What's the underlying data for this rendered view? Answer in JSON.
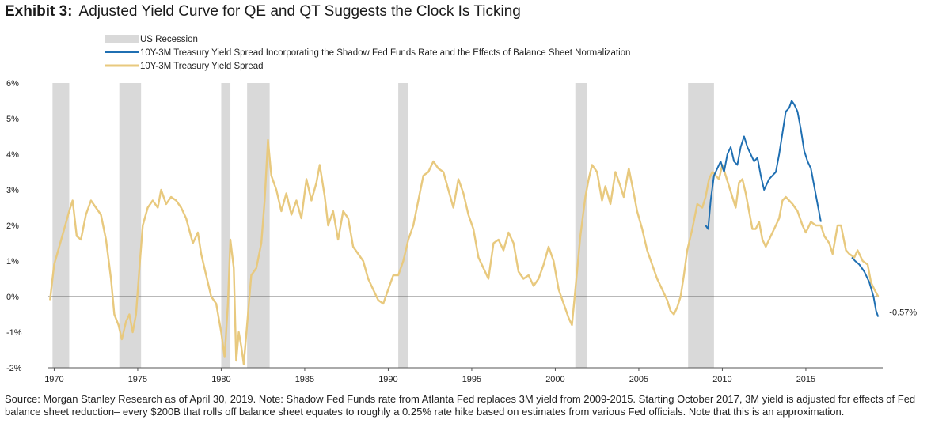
{
  "header": {
    "exhibit": "Exhibit 3:",
    "title": "Adjusted Yield Curve for QE and QT Suggests the Clock Is Ticking"
  },
  "footer": {
    "source": "Source: Morgan Stanley Research as of April 30, 2019. Note: Shadow Fed Funds rate from Atlanta Fed replaces 3M yield from 2009-2015. Starting October 2017, 3M yield is adjusted for effects of Fed balance sheet reduction– every $200B that rolls off balance sheet equates to roughly a 0.25% rate hike based on estimates from various Fed officials. Note that this is an approximation."
  },
  "colors": {
    "recession": "#d9d9d9",
    "adjusted": "#1f6fb2",
    "spread": "#e8c97e",
    "axis": "#555555"
  },
  "chart_data": {
    "type": "line",
    "xlim": [
      1969.6,
      2019.6
    ],
    "ylim": [
      -2,
      6
    ],
    "x_ticks": [
      1970,
      1975,
      1980,
      1985,
      1990,
      1995,
      2000,
      2005,
      2010,
      2015
    ],
    "x_tick_labels": [
      "1970",
      "1975",
      "1980",
      "1985",
      "1990",
      "1995",
      "2000",
      "2005",
      "2010",
      "2015"
    ],
    "y_ticks": [
      -2,
      -1,
      0,
      1,
      2,
      3,
      4,
      5,
      6
    ],
    "y_tick_labels": [
      "-2%",
      "-1%",
      "0%",
      "1%",
      "2%",
      "3%",
      "4%",
      "5%",
      "6%"
    ],
    "grid": false,
    "legend_position": "top-left",
    "end_label": "-0.57%",
    "recessions": {
      "name": "US Recession",
      "periods": [
        [
          1969.9,
          1970.9
        ],
        [
          1973.9,
          1975.2
        ],
        [
          1980.0,
          1980.55
        ],
        [
          1981.55,
          1982.9
        ],
        [
          1990.6,
          1991.2
        ],
        [
          2001.2,
          2001.9
        ],
        [
          2007.95,
          2009.5
        ]
      ]
    },
    "series": [
      {
        "name": "10Y-3M Treasury Yield Spread",
        "points": [
          [
            1969.75,
            -0.1
          ],
          [
            1970.0,
            0.9
          ],
          [
            1970.3,
            1.4
          ],
          [
            1970.6,
            1.9
          ],
          [
            1970.9,
            2.4
          ],
          [
            1971.1,
            2.7
          ],
          [
            1971.35,
            1.7
          ],
          [
            1971.6,
            1.6
          ],
          [
            1971.9,
            2.3
          ],
          [
            1972.2,
            2.7
          ],
          [
            1972.5,
            2.5
          ],
          [
            1972.8,
            2.3
          ],
          [
            1973.1,
            1.6
          ],
          [
            1973.4,
            0.5
          ],
          [
            1973.6,
            -0.5
          ],
          [
            1973.85,
            -0.8
          ],
          [
            1974.05,
            -1.2
          ],
          [
            1974.3,
            -0.7
          ],
          [
            1974.5,
            -0.5
          ],
          [
            1974.7,
            -1.0
          ],
          [
            1974.9,
            -0.5
          ],
          [
            1975.1,
            0.8
          ],
          [
            1975.3,
            2.0
          ],
          [
            1975.6,
            2.5
          ],
          [
            1975.9,
            2.7
          ],
          [
            1976.2,
            2.5
          ],
          [
            1976.4,
            3.0
          ],
          [
            1976.7,
            2.6
          ],
          [
            1977.0,
            2.8
          ],
          [
            1977.3,
            2.7
          ],
          [
            1977.6,
            2.5
          ],
          [
            1977.9,
            2.2
          ],
          [
            1978.3,
            1.5
          ],
          [
            1978.6,
            1.8
          ],
          [
            1978.8,
            1.2
          ],
          [
            1979.1,
            0.6
          ],
          [
            1979.4,
            0.0
          ],
          [
            1979.7,
            -0.2
          ],
          [
            1980.0,
            -1.0
          ],
          [
            1980.2,
            -1.7
          ],
          [
            1980.4,
            -0.2
          ],
          [
            1980.55,
            1.6
          ],
          [
            1980.75,
            0.8
          ],
          [
            1980.9,
            -1.8
          ],
          [
            1981.05,
            -1.0
          ],
          [
            1981.2,
            -1.4
          ],
          [
            1981.35,
            -1.9
          ],
          [
            1981.55,
            -0.8
          ],
          [
            1981.8,
            0.6
          ],
          [
            1982.1,
            0.8
          ],
          [
            1982.4,
            1.5
          ],
          [
            1982.6,
            2.7
          ],
          [
            1982.8,
            4.4
          ],
          [
            1983.0,
            3.4
          ],
          [
            1983.3,
            3.0
          ],
          [
            1983.6,
            2.4
          ],
          [
            1983.9,
            2.9
          ],
          [
            1984.2,
            2.3
          ],
          [
            1984.5,
            2.7
          ],
          [
            1984.8,
            2.2
          ],
          [
            1985.1,
            3.3
          ],
          [
            1985.4,
            2.7
          ],
          [
            1985.7,
            3.2
          ],
          [
            1985.9,
            3.7
          ],
          [
            1986.2,
            2.8
          ],
          [
            1986.4,
            2.0
          ],
          [
            1986.7,
            2.4
          ],
          [
            1987.0,
            1.6
          ],
          [
            1987.3,
            2.4
          ],
          [
            1987.6,
            2.2
          ],
          [
            1987.9,
            1.4
          ],
          [
            1988.2,
            1.2
          ],
          [
            1988.5,
            1.0
          ],
          [
            1988.8,
            0.5
          ],
          [
            1989.1,
            0.2
          ],
          [
            1989.4,
            -0.1
          ],
          [
            1989.7,
            -0.2
          ],
          [
            1990.0,
            0.2
          ],
          [
            1990.3,
            0.6
          ],
          [
            1990.6,
            0.6
          ],
          [
            1990.9,
            1.0
          ],
          [
            1991.2,
            1.6
          ],
          [
            1991.5,
            2.0
          ],
          [
            1991.8,
            2.7
          ],
          [
            1992.1,
            3.4
          ],
          [
            1992.4,
            3.5
          ],
          [
            1992.7,
            3.8
          ],
          [
            1993.0,
            3.6
          ],
          [
            1993.3,
            3.5
          ],
          [
            1993.6,
            3.0
          ],
          [
            1993.9,
            2.5
          ],
          [
            1994.2,
            3.3
          ],
          [
            1994.5,
            2.9
          ],
          [
            1994.8,
            2.3
          ],
          [
            1995.1,
            1.9
          ],
          [
            1995.4,
            1.1
          ],
          [
            1995.7,
            0.8
          ],
          [
            1996.0,
            0.5
          ],
          [
            1996.3,
            1.5
          ],
          [
            1996.6,
            1.6
          ],
          [
            1996.9,
            1.3
          ],
          [
            1997.2,
            1.8
          ],
          [
            1997.5,
            1.5
          ],
          [
            1997.8,
            0.7
          ],
          [
            1998.1,
            0.5
          ],
          [
            1998.4,
            0.6
          ],
          [
            1998.7,
            0.3
          ],
          [
            1999.0,
            0.5
          ],
          [
            1999.3,
            0.9
          ],
          [
            1999.6,
            1.4
          ],
          [
            1999.9,
            1.0
          ],
          [
            2000.2,
            0.2
          ],
          [
            2000.5,
            -0.2
          ],
          [
            2000.8,
            -0.6
          ],
          [
            2001.0,
            -0.8
          ],
          [
            2001.2,
            0.2
          ],
          [
            2001.5,
            1.7
          ],
          [
            2001.8,
            2.8
          ],
          [
            2002.0,
            3.3
          ],
          [
            2002.2,
            3.7
          ],
          [
            2002.5,
            3.5
          ],
          [
            2002.8,
            2.7
          ],
          [
            2003.0,
            3.1
          ],
          [
            2003.3,
            2.6
          ],
          [
            2003.6,
            3.5
          ],
          [
            2003.9,
            3.1
          ],
          [
            2004.1,
            2.8
          ],
          [
            2004.4,
            3.6
          ],
          [
            2004.7,
            2.9
          ],
          [
            2004.9,
            2.4
          ],
          [
            2005.2,
            1.9
          ],
          [
            2005.5,
            1.3
          ],
          [
            2005.8,
            0.9
          ],
          [
            2006.1,
            0.5
          ],
          [
            2006.4,
            0.2
          ],
          [
            2006.7,
            -0.1
          ],
          [
            2006.9,
            -0.4
          ],
          [
            2007.1,
            -0.5
          ],
          [
            2007.3,
            -0.3
          ],
          [
            2007.5,
            0.0
          ],
          [
            2007.7,
            0.6
          ],
          [
            2007.9,
            1.3
          ],
          [
            2008.2,
            1.9
          ],
          [
            2008.5,
            2.6
          ],
          [
            2008.8,
            2.5
          ],
          [
            2009.0,
            2.8
          ],
          [
            2009.2,
            3.3
          ],
          [
            2009.4,
            3.5
          ],
          [
            2009.6,
            3.4
          ],
          [
            2009.8,
            3.3
          ],
          [
            2010.0,
            3.7
          ],
          [
            2010.2,
            3.4
          ],
          [
            2010.4,
            3.1
          ],
          [
            2010.6,
            2.8
          ],
          [
            2010.8,
            2.5
          ],
          [
            2011.0,
            3.2
          ],
          [
            2011.2,
            3.3
          ],
          [
            2011.4,
            2.9
          ],
          [
            2011.6,
            2.4
          ],
          [
            2011.8,
            1.9
          ],
          [
            2012.0,
            1.9
          ],
          [
            2012.2,
            2.1
          ],
          [
            2012.4,
            1.6
          ],
          [
            2012.6,
            1.4
          ],
          [
            2012.9,
            1.7
          ],
          [
            2013.1,
            1.9
          ],
          [
            2013.4,
            2.2
          ],
          [
            2013.6,
            2.7
          ],
          [
            2013.8,
            2.8
          ],
          [
            2014.0,
            2.7
          ],
          [
            2014.2,
            2.6
          ],
          [
            2014.5,
            2.4
          ],
          [
            2014.8,
            2.0
          ],
          [
            2015.0,
            1.8
          ],
          [
            2015.3,
            2.1
          ],
          [
            2015.6,
            2.0
          ],
          [
            2015.9,
            2.0
          ],
          [
            2016.1,
            1.7
          ],
          [
            2016.4,
            1.5
          ],
          [
            2016.6,
            1.2
          ],
          [
            2016.9,
            2.0
          ],
          [
            2017.1,
            2.0
          ],
          [
            2017.4,
            1.3
          ],
          [
            2017.6,
            1.2
          ],
          [
            2017.9,
            1.1
          ],
          [
            2018.1,
            1.3
          ],
          [
            2018.4,
            1.0
          ],
          [
            2018.7,
            0.9
          ],
          [
            2018.9,
            0.4
          ],
          [
            2019.1,
            0.2
          ],
          [
            2019.33,
            0.0
          ]
        ]
      },
      {
        "name": "10Y-3M Treasury Yield Spread Incorporating the Shadow Fed Funds Rate and the Effects of Balance Sheet Normalization",
        "points": [
          [
            2009.0,
            2.0
          ],
          [
            2009.15,
            1.9
          ],
          [
            2009.3,
            2.7
          ],
          [
            2009.5,
            3.4
          ],
          [
            2009.7,
            3.6
          ],
          [
            2009.9,
            3.8
          ],
          [
            2010.1,
            3.5
          ],
          [
            2010.3,
            4.0
          ],
          [
            2010.5,
            4.2
          ],
          [
            2010.7,
            3.8
          ],
          [
            2010.9,
            3.7
          ],
          [
            2011.1,
            4.2
          ],
          [
            2011.3,
            4.5
          ],
          [
            2011.5,
            4.2
          ],
          [
            2011.7,
            4.0
          ],
          [
            2011.9,
            3.8
          ],
          [
            2012.1,
            3.9
          ],
          [
            2012.3,
            3.4
          ],
          [
            2012.5,
            3.0
          ],
          [
            2012.8,
            3.3
          ],
          [
            2013.0,
            3.4
          ],
          [
            2013.2,
            3.5
          ],
          [
            2013.4,
            4.0
          ],
          [
            2013.6,
            4.6
          ],
          [
            2013.8,
            5.2
          ],
          [
            2014.0,
            5.3
          ],
          [
            2014.15,
            5.5
          ],
          [
            2014.3,
            5.4
          ],
          [
            2014.5,
            5.2
          ],
          [
            2014.7,
            4.7
          ],
          [
            2014.9,
            4.1
          ],
          [
            2015.1,
            3.8
          ],
          [
            2015.3,
            3.6
          ],
          [
            2015.5,
            3.1
          ],
          [
            2015.7,
            2.6
          ],
          [
            2015.9,
            2.1
          ]
        ],
        "continuation": [
          [
            2017.75,
            1.1
          ],
          [
            2017.95,
            1.0
          ],
          [
            2018.2,
            0.9
          ],
          [
            2018.5,
            0.7
          ],
          [
            2018.8,
            0.4
          ],
          [
            2019.05,
            0.0
          ],
          [
            2019.2,
            -0.4
          ],
          [
            2019.33,
            -0.57
          ]
        ]
      }
    ]
  }
}
